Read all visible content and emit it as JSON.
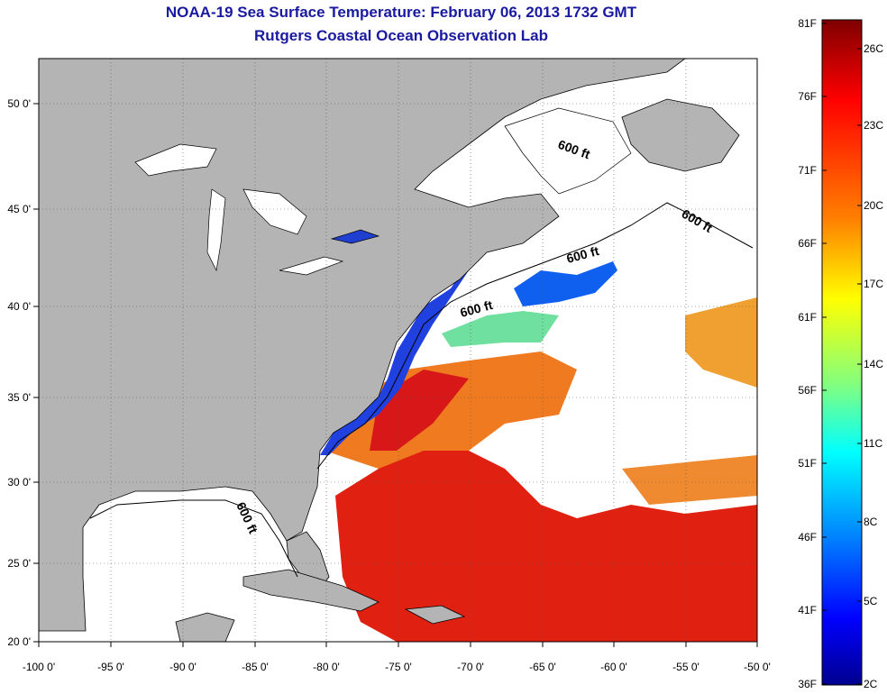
{
  "title": "NOAA-19 Sea Surface Temperature:  February 06, 2013 1732 GMT",
  "subtitle": "Rutgers Coastal Ocean Observation Lab",
  "map": {
    "lon_ticks": [
      "-100 0'",
      "-95 0'",
      "-90 0'",
      "-85 0'",
      "-80 0'",
      "-75 0'",
      "-70 0'",
      "-65 0'",
      "-60 0'",
      "-55 0'",
      "-50 0'"
    ],
    "lat_ticks": [
      "20 0'",
      "25 0'",
      "30 0'",
      "35 0'",
      "40 0'",
      "45 0'",
      "50 0'"
    ],
    "contour_label": "600 ft",
    "land_color": "#b4b4b4",
    "water_no_data_color": "#ffffff"
  },
  "colorbar": {
    "fahrenheit_labels": [
      "81F",
      "76F",
      "71F",
      "66F",
      "61F",
      "56F",
      "51F",
      "46F",
      "41F",
      "36F"
    ],
    "celsius_labels": [
      "26C",
      "23C",
      "20C",
      "17C",
      "14C",
      "11C",
      "8C",
      "5C",
      "2C"
    ],
    "colors": [
      "#7f0000",
      "#ff0000",
      "#ff8000",
      "#ffff00",
      "#80ff80",
      "#00ffff",
      "#0080ff",
      "#0000ff",
      "#00008f"
    ]
  }
}
